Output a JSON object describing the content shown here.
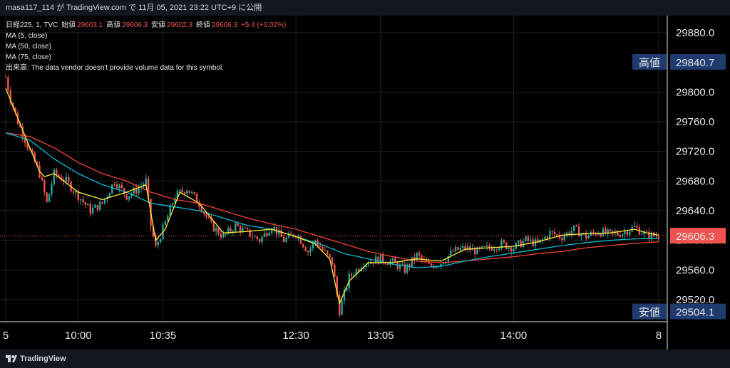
{
  "header": {
    "publish_text": "masa117_114 が TradingView.com で 11月 05, 2021 23:22 UTC+9 に公開"
  },
  "legend": {
    "symbol": "日経225, 1, TVC",
    "open_label": "始値",
    "open_value": "29603.1",
    "high_label": "高値",
    "high_value": "29606.3",
    "low_label": "安値",
    "low_value": "29602.3",
    "close_label": "終値",
    "close_value": "29606.3",
    "change": "+5.4 (+0.02%)",
    "ma5": "MA (5, close)",
    "ma50": "MA (50, close)",
    "ma75": "MA (75, close)",
    "volume_note": "出来高: The data vendor doesn't provide volume data for this symbol."
  },
  "footer": {
    "brand": "TradingView"
  },
  "colors": {
    "background": "#000000",
    "up": "#26a69a",
    "down": "#ef5350",
    "ma5": "#ffeb3b",
    "ma50": "#00bcd4",
    "ma75": "#f44336",
    "badge_blue": "#1e3a6e",
    "price_badge": "#ef5350"
  },
  "chart_data": {
    "type": "candlestick",
    "y_ticks": [
      29520,
      29560,
      29600,
      29640,
      29680,
      29720,
      29760,
      29800,
      29880
    ],
    "y_tick_labels": [
      "29520.0",
      "29560.0",
      "29600.0",
      "29640.0",
      "29680.0",
      "29720.0",
      "29760.0",
      "29800.0",
      "29880.0"
    ],
    "ylim": [
      29490,
      29900
    ],
    "x_ticks": [
      {
        "label": "5",
        "i": 0
      },
      {
        "label": "10:00",
        "i": 30
      },
      {
        "label": "10:35",
        "i": 65
      },
      {
        "label": "12:30",
        "i": 120
      },
      {
        "label": "13:05",
        "i": 155
      },
      {
        "label": "14:00",
        "i": 210
      },
      {
        "label": "8",
        "i": 270
      }
    ],
    "n_bars": 270,
    "anchors": [
      [
        0,
        29820
      ],
      [
        2,
        29790
      ],
      [
        5,
        29760
      ],
      [
        10,
        29720
      ],
      [
        14,
        29690
      ],
      [
        17,
        29650
      ],
      [
        20,
        29690
      ],
      [
        25,
        29680
      ],
      [
        30,
        29660
      ],
      [
        35,
        29640
      ],
      [
        40,
        29650
      ],
      [
        45,
        29680
      ],
      [
        50,
        29660
      ],
      [
        55,
        29670
      ],
      [
        58,
        29680
      ],
      [
        60,
        29620
      ],
      [
        62,
        29590
      ],
      [
        65,
        29615
      ],
      [
        70,
        29660
      ],
      [
        75,
        29670
      ],
      [
        80,
        29650
      ],
      [
        85,
        29620
      ],
      [
        90,
        29605
      ],
      [
        95,
        29620
      ],
      [
        100,
        29610
      ],
      [
        105,
        29600
      ],
      [
        110,
        29620
      ],
      [
        115,
        29600
      ],
      [
        120,
        29610
      ],
      [
        125,
        29585
      ],
      [
        128,
        29600
      ],
      [
        135,
        29570
      ],
      [
        138,
        29505
      ],
      [
        142,
        29550
      ],
      [
        148,
        29570
      ],
      [
        155,
        29575
      ],
      [
        160,
        29570
      ],
      [
        165,
        29560
      ],
      [
        170,
        29580
      ],
      [
        175,
        29565
      ],
      [
        180,
        29570
      ],
      [
        185,
        29585
      ],
      [
        190,
        29590
      ],
      [
        195,
        29585
      ],
      [
        200,
        29590
      ],
      [
        205,
        29595
      ],
      [
        210,
        29590
      ],
      [
        215,
        29600
      ],
      [
        220,
        29595
      ],
      [
        225,
        29610
      ],
      [
        230,
        29605
      ],
      [
        235,
        29615
      ],
      [
        240,
        29605
      ],
      [
        245,
        29612
      ],
      [
        250,
        29608
      ],
      [
        255,
        29610
      ],
      [
        260,
        29618
      ],
      [
        265,
        29607
      ],
      [
        270,
        29606
      ]
    ],
    "ma5": [
      [
        0,
        29805
      ],
      [
        5,
        29765
      ],
      [
        10,
        29725
      ],
      [
        15,
        29685
      ],
      [
        20,
        29690
      ],
      [
        30,
        29665
      ],
      [
        40,
        29655
      ],
      [
        50,
        29665
      ],
      [
        58,
        29675
      ],
      [
        62,
        29600
      ],
      [
        66,
        29615
      ],
      [
        72,
        29665
      ],
      [
        80,
        29650
      ],
      [
        90,
        29610
      ],
      [
        100,
        29612
      ],
      [
        110,
        29615
      ],
      [
        120,
        29605
      ],
      [
        128,
        29595
      ],
      [
        134,
        29575
      ],
      [
        138,
        29515
      ],
      [
        142,
        29545
      ],
      [
        150,
        29570
      ],
      [
        160,
        29570
      ],
      [
        170,
        29575
      ],
      [
        180,
        29572
      ],
      [
        190,
        29588
      ],
      [
        200,
        29590
      ],
      [
        210,
        29592
      ],
      [
        220,
        29598
      ],
      [
        230,
        29607
      ],
      [
        240,
        29609
      ],
      [
        250,
        29610
      ],
      [
        260,
        29615
      ],
      [
        265,
        29610
      ],
      [
        270,
        29607
      ]
    ],
    "ma50": [
      [
        0,
        29745
      ],
      [
        10,
        29735
      ],
      [
        20,
        29710
      ],
      [
        30,
        29690
      ],
      [
        40,
        29675
      ],
      [
        50,
        29665
      ],
      [
        60,
        29650
      ],
      [
        70,
        29645
      ],
      [
        80,
        29640
      ],
      [
        90,
        29630
      ],
      [
        100,
        29620
      ],
      [
        110,
        29615
      ],
      [
        120,
        29605
      ],
      [
        130,
        29595
      ],
      [
        140,
        29582
      ],
      [
        150,
        29575
      ],
      [
        160,
        29568
      ],
      [
        170,
        29563
      ],
      [
        180,
        29565
      ],
      [
        190,
        29572
      ],
      [
        200,
        29578
      ],
      [
        210,
        29583
      ],
      [
        220,
        29588
      ],
      [
        230,
        29593
      ],
      [
        240,
        29597
      ],
      [
        250,
        29600
      ],
      [
        260,
        29602
      ],
      [
        270,
        29603
      ]
    ],
    "ma75": [
      [
        0,
        29745
      ],
      [
        10,
        29740
      ],
      [
        20,
        29725
      ],
      [
        30,
        29705
      ],
      [
        40,
        29690
      ],
      [
        50,
        29680
      ],
      [
        60,
        29665
      ],
      [
        70,
        29655
      ],
      [
        80,
        29650
      ],
      [
        90,
        29640
      ],
      [
        100,
        29630
      ],
      [
        110,
        29622
      ],
      [
        120,
        29615
      ],
      [
        130,
        29605
      ],
      [
        140,
        29595
      ],
      [
        150,
        29585
      ],
      [
        160,
        29578
      ],
      [
        170,
        29572
      ],
      [
        180,
        29570
      ],
      [
        190,
        29572
      ],
      [
        200,
        29575
      ],
      [
        210,
        29578
      ],
      [
        220,
        29582
      ],
      [
        230,
        29585
      ],
      [
        240,
        29590
      ],
      [
        250,
        29593
      ],
      [
        260,
        29596
      ],
      [
        270,
        29598
      ]
    ],
    "high_badge": {
      "label": "高値",
      "value": "29840.7",
      "price": 29840.7
    },
    "low_badge": {
      "label": "安値",
      "value": "29504.1",
      "price": 29504.1
    },
    "last_price": {
      "value": "29606.3",
      "price": 29606.3
    }
  }
}
